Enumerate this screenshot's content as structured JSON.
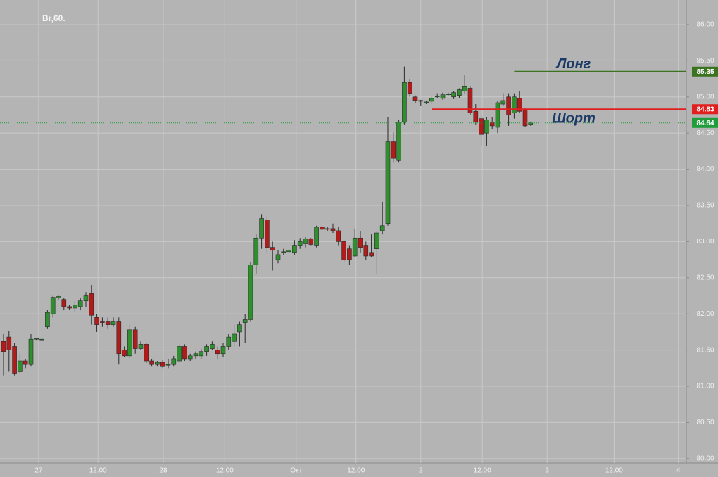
{
  "chart_data": {
    "type": "candlestick",
    "title": "Br,60.",
    "x": [
      0,
      1,
      2,
      3,
      4,
      5,
      6,
      7,
      8,
      9,
      10,
      11,
      12,
      13,
      14,
      15,
      16,
      17,
      18,
      19,
      20,
      21,
      22,
      23,
      24,
      25,
      26,
      27,
      28,
      29,
      30,
      31,
      32,
      33,
      34,
      35,
      36,
      37,
      38,
      39,
      40,
      41,
      42,
      43,
      44,
      45,
      46,
      47,
      48,
      49,
      50,
      51,
      52,
      53,
      54,
      55,
      56,
      57,
      58,
      59,
      60,
      61,
      62,
      63,
      64,
      65,
      66,
      67,
      68,
      69,
      70,
      71,
      72,
      73,
      74,
      75,
      76,
      77,
      78,
      79,
      80,
      81,
      82,
      83,
      84,
      85,
      86,
      87,
      88,
      89,
      90,
      91,
      92,
      93,
      94,
      95,
      96
    ],
    "open": [
      81.62,
      81.68,
      81.55,
      81.2,
      81.35,
      81.3,
      81.65,
      81.65,
      81.82,
      82.0,
      82.22,
      82.2,
      82.1,
      82.08,
      82.1,
      82.18,
      82.28,
      81.95,
      81.9,
      81.9,
      81.85,
      81.9,
      81.5,
      81.42,
      81.78,
      81.52,
      81.58,
      81.35,
      81.3,
      81.33,
      81.3,
      81.3,
      81.35,
      81.55,
      81.38,
      81.42,
      81.42,
      81.48,
      81.52,
      81.5,
      81.45,
      81.55,
      81.62,
      81.75,
      81.88,
      81.92,
      82.68,
      83.05,
      83.3,
      82.92,
      82.75,
      82.85,
      82.86,
      82.85,
      82.95,
      82.97,
      83.04,
      82.95,
      83.2,
      83.17,
      83.18,
      83.15,
      83.0,
      82.9,
      82.8,
      83.05,
      82.95,
      82.85,
      82.9,
      83.15,
      83.25,
      84.38,
      84.12,
      84.65,
      85.2,
      85.0,
      84.95,
      84.92,
      84.94,
      85.0,
      84.98,
      85.03,
      85.0,
      85.02,
      85.08,
      85.12,
      84.8,
      84.7,
      84.5,
      84.65,
      84.58,
      84.9,
      85.0,
      84.78,
      84.98,
      84.82,
      84.62
    ],
    "high": [
      81.72,
      81.76,
      81.6,
      81.45,
      81.38,
      81.72,
      81.66,
      81.66,
      82.05,
      82.25,
      82.25,
      82.22,
      82.12,
      82.18,
      82.22,
      82.3,
      82.4,
      82.0,
      81.95,
      81.95,
      81.95,
      81.95,
      81.55,
      81.85,
      81.82,
      81.62,
      81.6,
      81.38,
      81.35,
      81.36,
      81.38,
      81.42,
      81.58,
      81.58,
      81.45,
      81.48,
      81.52,
      81.58,
      81.62,
      81.55,
      81.6,
      81.72,
      81.85,
      81.9,
      82.0,
      82.72,
      83.1,
      83.38,
      83.35,
      83.0,
      82.88,
      82.9,
      82.9,
      83.02,
      83.05,
      83.06,
      83.05,
      83.22,
      83.22,
      83.2,
      83.25,
      83.2,
      83.02,
      82.95,
      83.18,
      83.15,
      83.0,
      83.1,
      83.15,
      83.55,
      84.72,
      84.52,
      84.68,
      85.42,
      85.25,
      85.02,
      84.96,
      84.95,
      85.02,
      85.05,
      85.06,
      85.06,
      85.08,
      85.12,
      85.3,
      85.15,
      84.9,
      84.75,
      84.72,
      84.72,
      84.95,
      85.05,
      85.05,
      85.05,
      85.08,
      84.85,
      84.66
    ],
    "low": [
      81.15,
      81.2,
      81.15,
      81.17,
      81.25,
      81.28,
      81.64,
      81.65,
      81.8,
      81.95,
      82.2,
      82.05,
      82.05,
      82.03,
      82.05,
      82.1,
      81.85,
      81.75,
      81.82,
      81.8,
      81.82,
      81.3,
      81.4,
      81.38,
      81.45,
      81.5,
      81.32,
      81.28,
      81.28,
      81.25,
      81.25,
      81.28,
      81.33,
      81.35,
      81.35,
      81.38,
      81.38,
      81.42,
      81.5,
      81.38,
      81.4,
      81.5,
      81.55,
      81.55,
      81.6,
      81.9,
      82.55,
      82.9,
      82.85,
      82.6,
      82.7,
      82.82,
      82.84,
      82.82,
      82.9,
      82.92,
      82.95,
      82.92,
      83.16,
      83.15,
      83.12,
      82.95,
      82.72,
      82.68,
      82.78,
      82.85,
      82.75,
      82.78,
      82.55,
      83.1,
      83.22,
      84.1,
      84.1,
      84.62,
      85.0,
      84.92,
      84.88,
      84.9,
      84.9,
      84.98,
      84.96,
      85.02,
      84.97,
      84.98,
      85.05,
      84.75,
      84.62,
      84.32,
      84.32,
      84.55,
      84.5,
      84.88,
      84.6,
      84.7,
      84.78,
      84.58,
      84.6
    ],
    "close": [
      81.48,
      81.5,
      81.18,
      81.35,
      81.3,
      81.65,
      81.66,
      81.65,
      82.02,
      82.23,
      82.24,
      82.1,
      82.08,
      82.12,
      82.18,
      82.25,
      81.98,
      81.85,
      81.88,
      81.85,
      81.9,
      81.45,
      81.42,
      81.78,
      81.52,
      81.58,
      81.35,
      81.3,
      81.33,
      81.28,
      81.3,
      81.38,
      81.55,
      81.38,
      81.42,
      81.45,
      81.48,
      81.55,
      81.58,
      81.45,
      81.55,
      81.68,
      81.72,
      81.85,
      81.92,
      82.68,
      83.05,
      83.32,
      82.92,
      82.88,
      82.82,
      82.86,
      82.88,
      82.95,
      83.0,
      83.04,
      82.96,
      83.2,
      83.17,
      83.18,
      83.15,
      83.0,
      82.75,
      82.75,
      83.05,
      82.92,
      82.8,
      82.8,
      83.12,
      83.22,
      84.38,
      84.15,
      84.65,
      85.2,
      85.05,
      84.95,
      84.94,
      84.93,
      84.98,
      85.01,
      85.03,
      85.04,
      85.06,
      85.1,
      85.15,
      84.78,
      84.65,
      84.48,
      84.68,
      84.6,
      84.92,
      84.95,
      84.75,
      85.0,
      84.8,
      84.6,
      84.64
    ],
    "up_color": "#2f8f2f",
    "down_color": "#b31b1b",
    "ylim": [
      79.94,
      86.34
    ],
    "yticks": [
      {
        "value": 80,
        "label": "80.00"
      },
      {
        "value": 80.5,
        "label": "80.50"
      },
      {
        "value": 81,
        "label": "81.00"
      },
      {
        "value": 81.5,
        "label": "81.50"
      },
      {
        "value": 82,
        "label": "82.00"
      },
      {
        "value": 82.5,
        "label": "82.50"
      },
      {
        "value": 83,
        "label": "83.00"
      },
      {
        "value": 83.5,
        "label": "83.50"
      },
      {
        "value": 84,
        "label": "84.00"
      },
      {
        "value": 84.5,
        "label": "84.50"
      },
      {
        "value": 85,
        "label": "85.00"
      },
      {
        "value": 85.5,
        "label": "85.50"
      },
      {
        "value": 86,
        "label": "86.00"
      }
    ],
    "xlim": [
      -0.64,
      124.36
    ],
    "xticks": [
      {
        "value": 6.4,
        "label": "27"
      },
      {
        "value": 17.2,
        "label": "12:00"
      },
      {
        "value": 29.1,
        "label": "28"
      },
      {
        "value": 40.3,
        "label": "12:00"
      },
      {
        "value": 53.3,
        "label": "Окт"
      },
      {
        "value": 64.2,
        "label": "12:00"
      },
      {
        "value": 76.0,
        "label": "2"
      },
      {
        "value": 87.2,
        "label": "12:00"
      },
      {
        "value": 99.0,
        "label": "3"
      },
      {
        "value": 111.2,
        "label": "12:00"
      },
      {
        "value": 122.9,
        "label": "4"
      }
    ],
    "grid": true,
    "levels": [
      {
        "name": "Лонг",
        "value": 85.35,
        "label": "85.35",
        "color": "#3b7320",
        "start": 93
      },
      {
        "name": "Шорт",
        "value": 84.83,
        "label": "84.83",
        "color": "#e0201e",
        "start": 78
      }
    ],
    "last_price": {
      "value": 84.64,
      "label": "84.64",
      "color": "#1f9d3a"
    }
  }
}
